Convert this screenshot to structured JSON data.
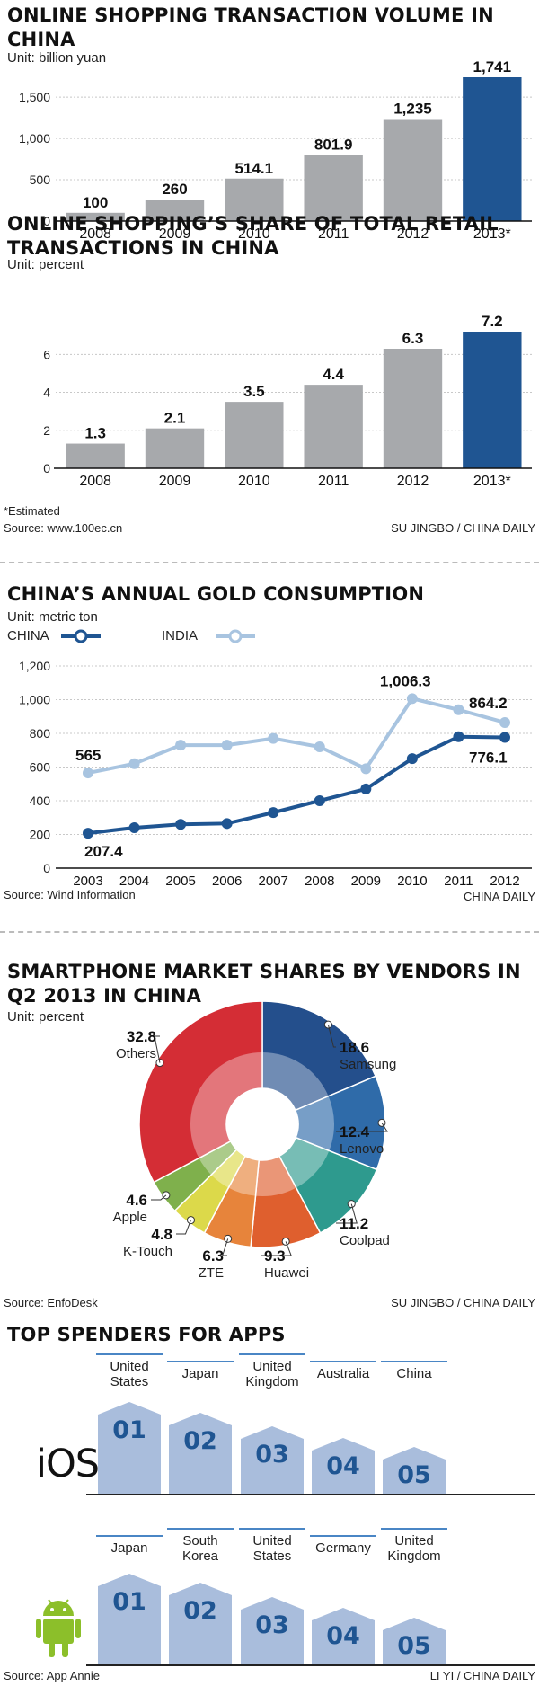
{
  "chart_data": [
    {
      "type": "bar",
      "title": "ONLINE SHOPPING TRANSACTION VOLUME IN CHINA",
      "unit": "Unit: billion yuan",
      "categories": [
        "2008",
        "2009",
        "2010",
        "2011",
        "2012",
        "2013*"
      ],
      "values": [
        100,
        260,
        514.1,
        801.9,
        1235,
        1741
      ],
      "value_labels": [
        "100",
        "260",
        "514.1",
        "801.9",
        "1,235",
        "1,741"
      ],
      "ylim": [
        0,
        1741
      ],
      "yticks": [
        0,
        500,
        1000,
        1500
      ],
      "ytick_labels": [
        "0",
        "500",
        "1,000",
        "1,500"
      ],
      "colors": {
        "bar": "#a7a9ac",
        "highlight": "#1f5592"
      },
      "grid": true
    },
    {
      "type": "bar",
      "title": "ONLINE SHOPPING’S SHARE OF TOTAL RETAIL TRANSACTIONS IN CHINA",
      "unit": "Unit: percent",
      "categories": [
        "2008",
        "2009",
        "2010",
        "2011",
        "2012",
        "2013*"
      ],
      "values": [
        1.3,
        2.1,
        3.5,
        4.4,
        6.3,
        7.2
      ],
      "value_labels": [
        "1.3",
        "2.1",
        "3.5",
        "4.4",
        "6.3",
        "7.2"
      ],
      "ylim": [
        0,
        7.2
      ],
      "yticks": [
        0,
        2,
        4,
        6
      ],
      "ytick_labels": [
        "0",
        "2",
        "4",
        "6"
      ],
      "colors": {
        "bar": "#a7a9ac",
        "highlight": "#1f5592"
      },
      "grid": true
    },
    {
      "type": "line",
      "title": "CHINA’S ANNUAL GOLD CONSUMPTION",
      "unit": "Unit: metric ton",
      "x": [
        "2003",
        "2004",
        "2005",
        "2006",
        "2007",
        "2008",
        "2009",
        "2010",
        "2011",
        "2012"
      ],
      "series": [
        {
          "name": "CHINA",
          "values": [
            207.4,
            240,
            260,
            265,
            330,
            400,
            470,
            650,
            780,
            776.1
          ],
          "color": "#1f5592"
        },
        {
          "name": "INDIA",
          "values": [
            565,
            620,
            730,
            730,
            770,
            720,
            590,
            1006.3,
            940,
            864.2
          ],
          "color": "#a8c4e0"
        }
      ],
      "labels": [
        "207.4",
        "565",
        "1,006.3",
        "864.2",
        "776.1"
      ],
      "ylim": [
        0,
        1200
      ],
      "yticks": [
        0,
        200,
        400,
        600,
        800,
        1000,
        1200
      ],
      "ytick_labels": [
        "0",
        "200",
        "400",
        "600",
        "800",
        "1,000",
        "1,200"
      ],
      "legend": "top-left",
      "grid": true
    },
    {
      "type": "pie",
      "title": "SMARTPHONE MARKET SHARES BY VENDORS IN Q2 2013 IN CHINA",
      "unit": "Unit: percent",
      "slices": [
        {
          "name": "Samsung",
          "value": 18.6,
          "label": "18.6",
          "color": "#244f8c"
        },
        {
          "name": "Lenovo",
          "value": 12.4,
          "label": "12.4",
          "color": "#2f6ba9"
        },
        {
          "name": "Coolpad",
          "value": 11.2,
          "label": "11.2",
          "color": "#2e9a8e"
        },
        {
          "name": "Huawei",
          "value": 9.3,
          "label": "9.3",
          "color": "#df5f2e"
        },
        {
          "name": "ZTE",
          "value": 6.3,
          "label": "6.3",
          "color": "#e7843b"
        },
        {
          "name": "K-Touch",
          "value": 4.8,
          "label": "4.8",
          "color": "#dcd94a"
        },
        {
          "name": "Apple",
          "value": 4.6,
          "label": "4.6",
          "color": "#7fb04c"
        },
        {
          "name": "Others",
          "value": 32.8,
          "label": "32.8",
          "color": "#d42d35"
        }
      ]
    }
  ],
  "text": {
    "estimated": "*Estimated",
    "source1": "Source: www.100ec.cn",
    "credit1": "SU JINGBO / CHINA DAILY",
    "source2": "Source: Wind Information",
    "credit2": "CHINA DAILY",
    "source3": "Source: EnfoDesk",
    "credit3": "SU JINGBO / CHINA DAILY",
    "apps_title": "TOP SPENDERS FOR APPS",
    "source4": "Source: App Annie",
    "credit4": "LI YI / CHINA DAILY",
    "legend_china": "CHINA",
    "legend_india": "INDIA"
  },
  "apps": {
    "ios": {
      "logo": "iOS",
      "countries": [
        "United States",
        "Japan",
        "United Kingdom",
        "Australia",
        "China"
      ],
      "ranks": [
        "01",
        "02",
        "03",
        "04",
        "05"
      ]
    },
    "android": {
      "icon": "android-robot-icon",
      "countries": [
        "Japan",
        "South Korea",
        "United States",
        "Germany",
        "United Kingdom"
      ],
      "ranks": [
        "01",
        "02",
        "03",
        "04",
        "05"
      ]
    },
    "colors": {
      "tab": "#a9bddc",
      "rank": "#1f5592",
      "rule": "#4a86c5"
    }
  }
}
